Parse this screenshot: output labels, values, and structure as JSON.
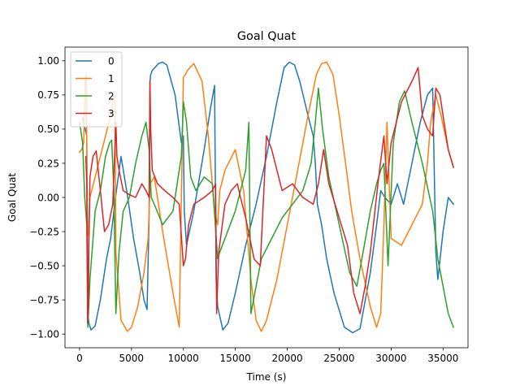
{
  "chart_data": {
    "type": "line",
    "title": "Goal Quat",
    "xlabel": "Time (s)",
    "ylabel": "Goal Quat",
    "xlim": [
      -1400,
      37400
    ],
    "ylim": [
      -1.1,
      1.1
    ],
    "xticks": [
      0,
      5000,
      10000,
      15000,
      20000,
      25000,
      30000,
      35000
    ],
    "yticks": [
      -1.0,
      -0.75,
      -0.5,
      -0.25,
      0.0,
      0.25,
      0.5,
      0.75,
      1.0
    ],
    "xtick_labels": [
      "0",
      "5000",
      "10000",
      "15000",
      "20000",
      "25000",
      "30000",
      "35000"
    ],
    "ytick_labels": [
      "−1.00",
      "−0.75",
      "−0.50",
      "−0.25",
      "0.00",
      "0.25",
      "0.50",
      "0.75",
      "1.00"
    ],
    "grid": false,
    "legend_position": "top-left",
    "series": [
      {
        "name": "0",
        "color": "#1f77b4",
        "x": [
          300,
          550,
          700,
          800,
          900,
          1100,
          1500,
          2000,
          2600,
          3000,
          3500,
          4000,
          4600,
          5200,
          5800,
          6200,
          6500,
          6700,
          6780,
          6850,
          7000,
          7600,
          8000,
          8400,
          9200,
          9800,
          10000,
          10080,
          10300,
          11000,
          12000,
          12600,
          13000,
          13150,
          13300,
          13800,
          14300,
          15000,
          16000,
          17000,
          18000,
          19000,
          19700,
          20200,
          20700,
          21200,
          22000,
          22500,
          22700,
          22800,
          22900,
          23300,
          23800,
          24500,
          25500,
          26300,
          27000,
          28000,
          28600,
          29000,
          29400,
          30000,
          30600,
          31200,
          32000,
          32800,
          33500,
          34000,
          34300,
          34500,
          35000,
          35500,
          36000
        ],
        "y": [
          0.58,
          0.5,
          0.45,
          -0.85,
          -0.92,
          -0.97,
          -0.94,
          -0.75,
          -0.45,
          -0.3,
          0.02,
          0.3,
          0.02,
          -0.3,
          -0.55,
          -0.75,
          -0.82,
          -0.15,
          0.85,
          0.9,
          0.93,
          0.98,
          0.99,
          0.97,
          0.75,
          0.4,
          0.45,
          -0.1,
          -0.35,
          -0.1,
          0.35,
          0.65,
          0.82,
          -0.6,
          -0.8,
          -0.97,
          -0.92,
          -0.7,
          -0.35,
          -0.05,
          0.3,
          0.7,
          0.95,
          0.99,
          0.97,
          0.85,
          0.6,
          0.45,
          0.25,
          0.1,
          -0.05,
          -0.2,
          -0.45,
          -0.7,
          -0.95,
          -0.99,
          -0.96,
          -0.55,
          -0.2,
          0.05,
          0.0,
          -0.05,
          0.1,
          -0.05,
          0.25,
          0.55,
          0.75,
          0.8,
          -0.4,
          -0.6,
          -0.25,
          0.0,
          -0.05
        ]
      },
      {
        "name": "1",
        "color": "#ff7f0e",
        "x": [
          0,
          200,
          400,
          550,
          650,
          750,
          850,
          1000,
          1500,
          2000,
          2500,
          3000,
          3300,
          3400,
          3500,
          3700,
          4000,
          4600,
          5000,
          5600,
          6200,
          6600,
          6800,
          7200,
          8000,
          9000,
          9600,
          10000,
          10200,
          10400,
          11000,
          11800,
          12400,
          13000,
          13300,
          13500,
          14000,
          15000,
          15800,
          16500,
          17000,
          17500,
          18000,
          19000,
          20000,
          21000,
          22000,
          22800,
          23300,
          23800,
          24400,
          25000,
          25700,
          26200,
          27000,
          28000,
          28600,
          29000,
          29300,
          29600,
          30000,
          31000,
          32000,
          33000,
          33500,
          33800,
          34300,
          34800,
          35500,
          36000
        ],
        "y": [
          0.33,
          0.35,
          0.4,
          0.85,
          0.9,
          -0.3,
          -0.25,
          0.0,
          0.15,
          0.3,
          0.45,
          0.6,
          0.75,
          0.7,
          -0.4,
          -0.6,
          -0.9,
          -0.98,
          -0.95,
          -0.8,
          -0.55,
          -0.3,
          0.1,
          0.15,
          -0.25,
          -0.7,
          -0.95,
          0.88,
          0.9,
          0.93,
          0.98,
          0.85,
          0.45,
          -0.1,
          -0.2,
          0.05,
          0.2,
          0.35,
          0.05,
          -0.6,
          -0.9,
          -0.98,
          -0.9,
          -0.6,
          -0.2,
          0.2,
          0.6,
          0.9,
          0.98,
          0.99,
          0.9,
          0.6,
          0.2,
          -0.1,
          -0.45,
          -0.8,
          -0.95,
          -0.85,
          -0.2,
          0.55,
          -0.3,
          -0.35,
          -0.2,
          -0.05,
          0.25,
          0.55,
          0.75,
          0.6,
          0.35,
          0.22
        ]
      },
      {
        "name": "2",
        "color": "#2ca02c",
        "x": [
          0,
          300,
          500,
          700,
          800,
          1000,
          1500,
          2000,
          2500,
          2900,
          3100,
          3300,
          3500,
          3600,
          3800,
          4200,
          4800,
          5400,
          6000,
          6400,
          6700,
          6900,
          7200,
          8000,
          9000,
          9800,
          10000,
          10300,
          10700,
          11200,
          12000,
          12800,
          13300,
          13500,
          14000,
          15000,
          16000,
          16300,
          16500,
          17500,
          18500,
          19500,
          20500,
          21500,
          22300,
          22700,
          23000,
          23400,
          24000,
          25000,
          26000,
          26700,
          27300,
          28000,
          28600,
          29000,
          29300,
          29700,
          30200,
          30800,
          31300,
          32000,
          33000,
          34000,
          34500,
          35000,
          35500,
          36000
        ],
        "y": [
          0.55,
          0.4,
          0.0,
          -0.2,
          -0.95,
          -0.6,
          -0.1,
          0.05,
          0.3,
          0.4,
          0.42,
          0.05,
          -0.85,
          -0.7,
          -0.4,
          -0.1,
          0.0,
          0.25,
          0.45,
          0.55,
          0.35,
          0.0,
          -0.05,
          -0.2,
          -0.1,
          0.3,
          0.7,
          0.55,
          0.15,
          0.05,
          0.15,
          0.1,
          -0.45,
          -0.4,
          -0.3,
          -0.1,
          0.2,
          0.55,
          -0.85,
          -0.45,
          -0.3,
          -0.15,
          -0.05,
          0.05,
          0.25,
          0.55,
          0.8,
          0.5,
          0.15,
          -0.2,
          -0.55,
          -0.65,
          -0.4,
          -0.1,
          0.1,
          0.2,
          0.25,
          -0.5,
          0.4,
          0.7,
          0.78,
          0.55,
          0.25,
          -0.1,
          -0.45,
          -0.65,
          -0.85,
          -0.95
        ]
      },
      {
        "name": "3",
        "color": "#d62728",
        "x": [
          600,
          700,
          780,
          850,
          900,
          1000,
          1300,
          1600,
          2000,
          2400,
          2800,
          3200,
          3500,
          3600,
          3800,
          4200,
          4800,
          5400,
          6000,
          6400,
          6700,
          6780,
          6850,
          7000,
          7500,
          8200,
          9000,
          9600,
          10000,
          10200,
          10500,
          11000,
          12000,
          12800,
          13100,
          13200,
          13400,
          14000,
          14600,
          15200,
          15500,
          16000,
          16800,
          17400,
          18000,
          18500,
          19500,
          20500,
          21500,
          22500,
          23000,
          23500,
          24000,
          25000,
          25800,
          26400,
          27000,
          27500,
          28000,
          28800,
          29300,
          29600,
          30000,
          31000,
          32000,
          32600,
          33000,
          33500,
          34000,
          34300,
          34700,
          35000,
          35500,
          36000
        ],
        "y": [
          0.3,
          0.1,
          -0.92,
          -0.8,
          -0.35,
          0.15,
          0.3,
          0.34,
          0.05,
          -0.25,
          -0.2,
          -0.05,
          0.55,
          0.3,
          0.2,
          0.05,
          0.02,
          0.0,
          0.1,
          0.05,
          0.0,
          0.85,
          0.5,
          0.2,
          0.1,
          0.05,
          0.0,
          -0.05,
          -0.5,
          -0.45,
          -0.2,
          -0.05,
          0.0,
          0.05,
          0.1,
          -0.85,
          -0.4,
          -0.05,
          0.05,
          0.1,
          0.0,
          -0.15,
          -0.45,
          -0.5,
          0.45,
          0.35,
          0.05,
          0.1,
          0.0,
          -0.05,
          0.1,
          0.35,
          0.1,
          -0.15,
          -0.35,
          -0.7,
          -0.85,
          -0.65,
          -0.4,
          0.15,
          0.45,
          0.1,
          0.4,
          0.7,
          0.85,
          0.95,
          0.6,
          0.5,
          0.45,
          0.8,
          0.75,
          0.6,
          0.35,
          0.22
        ]
      }
    ]
  }
}
